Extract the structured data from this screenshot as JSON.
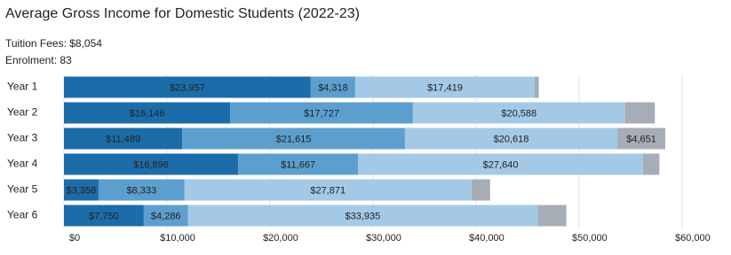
{
  "chart_data": {
    "type": "stacked-bar-horizontal",
    "title": "Average Gross Income for Domestic Students (2022-23)",
    "annotations": [
      "Tuition Fees: $8,054",
      "Enrolment: 83"
    ],
    "categories": [
      "Year 1",
      "Year 2",
      "Year 3",
      "Year 4",
      "Year 5",
      "Year 6"
    ],
    "series": [
      {
        "color": "#1c6ca9",
        "values": [
          23957,
          16146,
          11489,
          16896,
          3358,
          7750
        ],
        "value_labels": [
          "$23,957",
          "$16,146",
          "$11,489",
          "$16,896",
          "$3,358",
          "$7,750"
        ]
      },
      {
        "color": "#5c9fcf",
        "values": [
          4318,
          17727,
          21615,
          11667,
          8333,
          4286
        ],
        "value_labels": [
          "$4,318",
          "$17,727",
          "$21,615",
          "$11,667",
          "$8,333",
          "$4,286"
        ]
      },
      {
        "color": "#a3c9e7",
        "values": [
          17419,
          20588,
          20618,
          27640,
          27871,
          33935
        ],
        "value_labels": [
          "$17,419",
          "$20,588",
          "$20,618",
          "$27,640",
          "$27,871",
          "$33,935"
        ]
      },
      {
        "color": "#a6adb6",
        "values": [
          400,
          2900,
          4651,
          1600,
          1800,
          2800
        ],
        "value_labels": [
          null,
          null,
          "$4,651",
          null,
          null,
          null
        ]
      }
    ],
    "xlim": [
      0,
      60700
    ],
    "xticks": [
      {
        "value": 0,
        "label": "$0"
      },
      {
        "value": 10000,
        "label": "$10,000"
      },
      {
        "value": 20000,
        "label": "$20,000"
      },
      {
        "value": 30000,
        "label": "$30,000"
      },
      {
        "value": 40000,
        "label": "$40,000"
      },
      {
        "value": 50000,
        "label": "$50,000"
      },
      {
        "value": 60000,
        "label": "$60,000"
      }
    ],
    "grid": true
  }
}
